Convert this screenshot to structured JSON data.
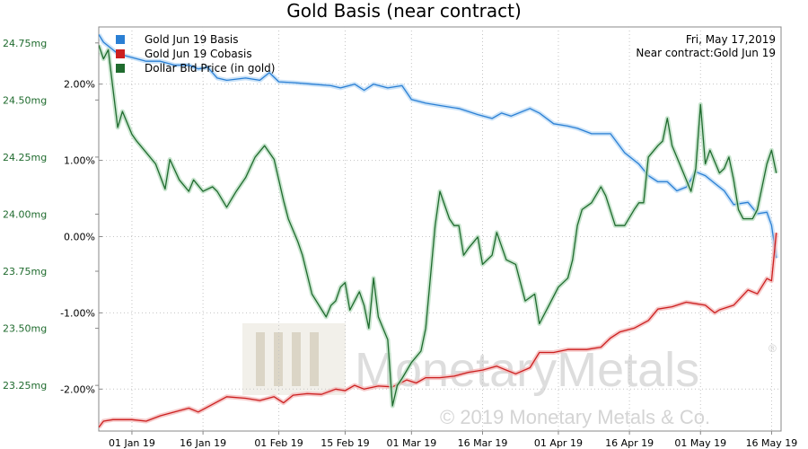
{
  "chart_data": {
    "type": "line",
    "title": "Gold Basis (near contract)",
    "info_date": "Fri, May 17,2019",
    "info_contract": "Near contract:Gold Jun 19",
    "watermark_brand": "MonetaryMetals",
    "watermark_registered": "®",
    "watermark_copyright": "© 2019 Monetary Metals & Co.",
    "x_ticks": [
      "01 Jan 19",
      "16 Jan 19",
      "01 Feb 19",
      "15 Feb 19",
      "01 Mar 19",
      "16 Mar 19",
      "01 Apr 19",
      "16 Apr 19",
      "01 May 19",
      "16 May 19"
    ],
    "x_tick_days": [
      31,
      46,
      62,
      76,
      90,
      105,
      121,
      136,
      151,
      166
    ],
    "xlim": [
      24,
      168
    ],
    "y_left": {
      "ylim": [
        23.05,
        24.82
      ],
      "ticks": [
        "24.75mg",
        "24.50mg",
        "24.25mg",
        "24.00mg",
        "23.75mg",
        "23.50mg",
        "23.25mg"
      ],
      "tick_values": [
        24.75,
        24.5,
        24.25,
        24.0,
        23.75,
        23.5,
        23.25
      ]
    },
    "y_right": {
      "ylim": [
        -2.55,
        2.75
      ],
      "ticks": [
        "2.00%",
        "1.00%",
        "0.00%",
        "-1.00%",
        "-2.00%"
      ],
      "tick_values": [
        2.0,
        1.0,
        0.0,
        -1.0,
        -2.0
      ]
    },
    "series": [
      {
        "name": "Gold Jun 19 Basis",
        "color": "#2a7fd4",
        "axis": "right",
        "x": [
          24,
          25,
          26,
          28,
          31,
          34,
          37,
          40,
          43,
          45,
          47,
          49,
          51,
          55,
          58,
          60,
          62,
          65,
          69,
          73,
          75,
          78,
          80,
          82,
          85,
          88,
          90,
          93,
          96,
          100,
          104,
          107,
          109,
          111,
          115,
          117,
          120,
          123,
          125,
          128,
          132,
          135,
          138,
          140,
          142,
          144,
          146,
          148,
          150,
          152,
          154,
          156,
          158,
          161,
          163,
          165,
          166,
          167
        ],
        "y": [
          2.65,
          2.55,
          2.5,
          2.4,
          2.35,
          2.3,
          2.3,
          2.25,
          2.25,
          2.2,
          2.22,
          2.08,
          2.05,
          2.08,
          2.05,
          2.15,
          2.03,
          2.02,
          2.0,
          1.98,
          1.95,
          2.0,
          1.92,
          2.0,
          1.95,
          1.98,
          1.8,
          1.75,
          1.72,
          1.68,
          1.6,
          1.55,
          1.62,
          1.58,
          1.68,
          1.62,
          1.48,
          1.45,
          1.42,
          1.35,
          1.35,
          1.1,
          0.95,
          0.8,
          0.72,
          0.72,
          0.6,
          0.65,
          0.85,
          0.8,
          0.7,
          0.6,
          0.42,
          0.45,
          0.3,
          0.32,
          0.15,
          -0.28
        ]
      },
      {
        "name": "Gold Jun 19 Cobasis",
        "color": "#cc1f1f",
        "axis": "right",
        "x": [
          24,
          25,
          27,
          31,
          34,
          37,
          40,
          43,
          45,
          48,
          51,
          55,
          58,
          61,
          63,
          65,
          68,
          71,
          74,
          76,
          78,
          80,
          83,
          86,
          89,
          91,
          93,
          96,
          99,
          102,
          105,
          108,
          110,
          112,
          115,
          117,
          120,
          123,
          127,
          130,
          132,
          134,
          137,
          140,
          142,
          145,
          148,
          150,
          152,
          154,
          155,
          158,
          161,
          163,
          165,
          166,
          167
        ],
        "y": [
          -2.5,
          -2.42,
          -2.4,
          -2.4,
          -2.42,
          -2.35,
          -2.3,
          -2.25,
          -2.3,
          -2.2,
          -2.1,
          -2.12,
          -2.15,
          -2.1,
          -2.18,
          -2.08,
          -2.06,
          -2.07,
          -2.0,
          -2.02,
          -1.95,
          -2.0,
          -1.96,
          -1.97,
          -1.88,
          -1.92,
          -1.85,
          -1.85,
          -1.83,
          -1.78,
          -1.75,
          -1.7,
          -1.75,
          -1.8,
          -1.72,
          -1.52,
          -1.52,
          -1.48,
          -1.48,
          -1.45,
          -1.33,
          -1.25,
          -1.2,
          -1.1,
          -0.95,
          -0.92,
          -0.86,
          -0.88,
          -0.9,
          -1.0,
          -0.96,
          -0.9,
          -0.7,
          -0.75,
          -0.55,
          -0.58,
          0.05
        ]
      },
      {
        "name": "Dollar Bid Price (in gold)",
        "color": "#1f6b2e",
        "axis": "left",
        "x": [
          24,
          25,
          26,
          27,
          28,
          29,
          31,
          32,
          34,
          36,
          38,
          39,
          41,
          43,
          44,
          46,
          48,
          49,
          51,
          53,
          55,
          57,
          59,
          61,
          63,
          64,
          66,
          67,
          69,
          72,
          73,
          74,
          75,
          76,
          77,
          79,
          80,
          81,
          82,
          83,
          85,
          86,
          87,
          88,
          90,
          92,
          93,
          95,
          96,
          98,
          99,
          100,
          101,
          102,
          104,
          105,
          107,
          108,
          110,
          112,
          114,
          116,
          117,
          119,
          121,
          123,
          124,
          125,
          126,
          128,
          130,
          131,
          133,
          134,
          135,
          137,
          138,
          139,
          140,
          142,
          143,
          144,
          145,
          147,
          149,
          150,
          151,
          152,
          153,
          155,
          156,
          157,
          158,
          159,
          160,
          162,
          163,
          164,
          165,
          166,
          167
        ],
        "y": [
          24.74,
          24.68,
          24.72,
          24.55,
          24.38,
          24.45,
          24.35,
          24.32,
          24.27,
          24.22,
          24.11,
          24.24,
          24.15,
          24.1,
          24.15,
          24.1,
          24.12,
          24.1,
          24.03,
          24.1,
          24.16,
          24.25,
          24.3,
          24.24,
          24.06,
          23.98,
          23.88,
          23.82,
          23.65,
          23.55,
          23.6,
          23.62,
          23.68,
          23.7,
          23.58,
          23.66,
          23.6,
          23.5,
          23.72,
          23.55,
          23.45,
          23.16,
          23.25,
          23.28,
          23.35,
          23.4,
          23.5,
          23.95,
          24.1,
          23.98,
          23.95,
          23.95,
          23.82,
          23.85,
          23.9,
          23.78,
          23.82,
          23.92,
          23.8,
          23.78,
          23.62,
          23.65,
          23.52,
          23.6,
          23.68,
          23.72,
          23.8,
          23.95,
          24.02,
          24.05,
          24.12,
          24.08,
          23.95,
          23.95,
          23.95,
          24.02,
          24.05,
          24.05,
          24.25,
          24.3,
          24.32,
          24.42,
          24.3,
          24.2,
          24.1,
          24.2,
          24.48,
          24.22,
          24.28,
          24.18,
          24.2,
          24.25,
          24.15,
          24.02,
          23.98,
          23.98,
          24.02,
          24.12,
          24.22,
          24.28,
          24.18
        ]
      }
    ]
  }
}
